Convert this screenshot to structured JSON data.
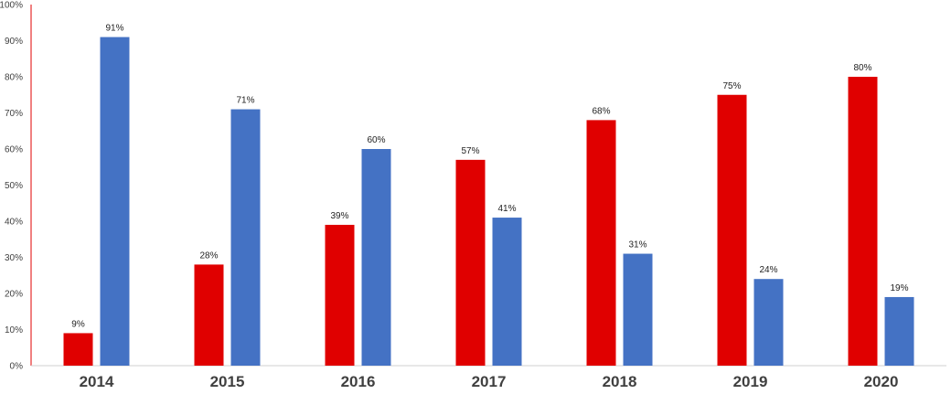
{
  "chart_data": {
    "type": "bar",
    "title": "",
    "xlabel": "",
    "ylabel": "",
    "categories": [
      "2014",
      "2015",
      "2016",
      "2017",
      "2018",
      "2019",
      "2020"
    ],
    "series": [
      {
        "color": "#e00000",
        "values": [
          9,
          28,
          39,
          57,
          68,
          75,
          80
        ],
        "labels": [
          "9%",
          "28%",
          "39%",
          "57%",
          "68%",
          "75%",
          "80%"
        ]
      },
      {
        "color": "#4472c4",
        "values": [
          91,
          71,
          60,
          41,
          31,
          24,
          19
        ],
        "labels": [
          "91%",
          "71%",
          "60%",
          "41%",
          "31%",
          "24%",
          "19%"
        ]
      }
    ],
    "ylim": [
      0,
      100
    ],
    "yticks": [
      "0%",
      "10%",
      "20%",
      "30%",
      "40%",
      "50%",
      "60%",
      "70%",
      "80%",
      "90%",
      "100%"
    ],
    "yaxis_color": "#e00000",
    "grid": false,
    "legend": "none"
  }
}
